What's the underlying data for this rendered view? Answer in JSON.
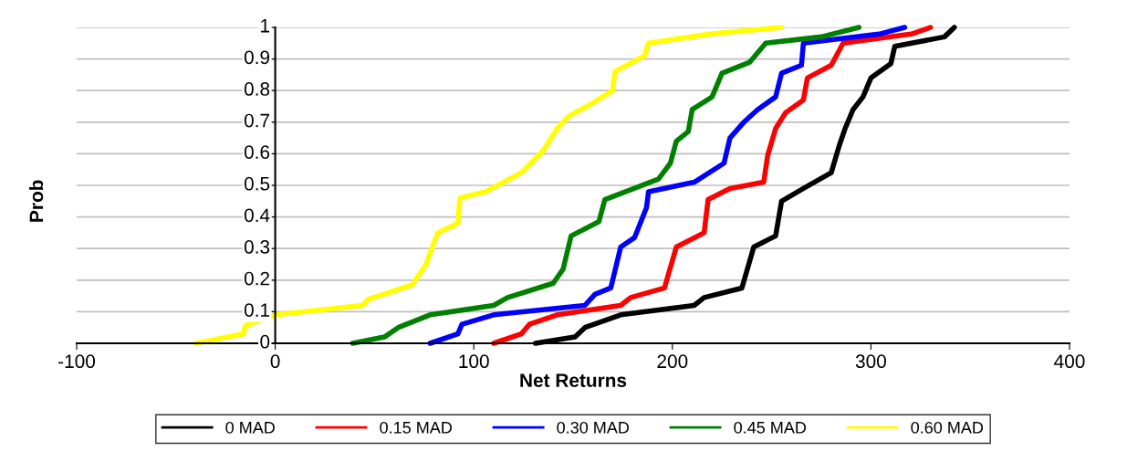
{
  "chart_data": {
    "type": "line",
    "xlabel": "Net Returns",
    "ylabel": "Prob",
    "xlim": [
      -100,
      400
    ],
    "xticks": [
      -100,
      0,
      100,
      200,
      300,
      400
    ],
    "ylim": [
      0,
      1
    ],
    "yticks": [
      0,
      0.1,
      0.2,
      0.3,
      0.4,
      0.5,
      0.6,
      0.7,
      0.8,
      0.9,
      1
    ],
    "grid": "y",
    "legend": "bottom",
    "marker": "none",
    "line_style": "solid",
    "series": [
      {
        "name": "0 MAD",
        "color": "#000000",
        "x": [
          131,
          151,
          156,
          174,
          211,
          216,
          235,
          241,
          252,
          255,
          266,
          280,
          284,
          287,
          291,
          296,
          300,
          310,
          312,
          337,
          342
        ],
        "values": [
          0,
          0.02,
          0.05,
          0.09,
          0.12,
          0.145,
          0.175,
          0.305,
          0.34,
          0.45,
          0.49,
          0.54,
          0.625,
          0.68,
          0.74,
          0.78,
          0.84,
          0.885,
          0.94,
          0.97,
          1
        ]
      },
      {
        "name": "0.15 MAD",
        "color": "#ff0000",
        "x": [
          110,
          124,
          128,
          142,
          174,
          179,
          196,
          202,
          216,
          218,
          229,
          246,
          248,
          252,
          257,
          266,
          268,
          280,
          286,
          321,
          330
        ],
        "values": [
          0,
          0.03,
          0.06,
          0.09,
          0.12,
          0.145,
          0.175,
          0.305,
          0.35,
          0.455,
          0.49,
          0.51,
          0.595,
          0.68,
          0.73,
          0.77,
          0.84,
          0.88,
          0.95,
          0.98,
          1
        ]
      },
      {
        "name": "0.30 MAD",
        "color": "#0000ff",
        "x": [
          78,
          92,
          94,
          110,
          156,
          161,
          169,
          174,
          181,
          187,
          188,
          211,
          226,
          229,
          236,
          243,
          252,
          255,
          265,
          266,
          305,
          317
        ],
        "values": [
          0,
          0.03,
          0.06,
          0.09,
          0.12,
          0.155,
          0.175,
          0.305,
          0.335,
          0.43,
          0.48,
          0.51,
          0.57,
          0.65,
          0.7,
          0.74,
          0.78,
          0.855,
          0.88,
          0.95,
          0.98,
          1
        ]
      },
      {
        "name": "0.45 MAD",
        "color": "#008000",
        "x": [
          39,
          55,
          62,
          78,
          110,
          117,
          140,
          145,
          149,
          163,
          166,
          193,
          199,
          202,
          208,
          210,
          220,
          225,
          239,
          247,
          275,
          294
        ],
        "values": [
          0,
          0.02,
          0.05,
          0.09,
          0.12,
          0.145,
          0.19,
          0.235,
          0.34,
          0.385,
          0.455,
          0.52,
          0.57,
          0.64,
          0.67,
          0.74,
          0.78,
          0.855,
          0.89,
          0.95,
          0.97,
          1
        ]
      },
      {
        "name": "0.60 MAD",
        "color": "#ffff00",
        "x": [
          -40,
          -16,
          -15,
          0,
          44,
          47,
          69,
          76,
          80,
          82,
          92,
          93,
          106,
          124,
          135,
          142,
          148,
          157,
          170,
          171,
          186,
          188,
          220,
          255
        ],
        "values": [
          0,
          0.03,
          0.055,
          0.09,
          0.12,
          0.14,
          0.185,
          0.25,
          0.32,
          0.35,
          0.38,
          0.46,
          0.48,
          0.54,
          0.61,
          0.68,
          0.72,
          0.75,
          0.8,
          0.86,
          0.91,
          0.95,
          0.98,
          1
        ]
      }
    ]
  }
}
